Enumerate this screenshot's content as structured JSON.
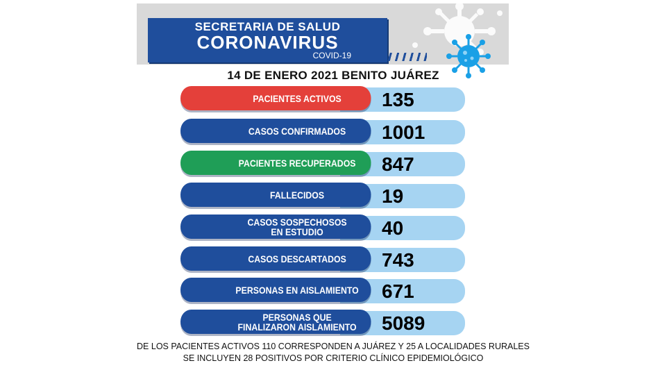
{
  "header": {
    "title_line1": "SECRETARIA DE SALUD",
    "title_line2": "CORONAVIRUS",
    "title_line3": "COVID-19",
    "date_location": "14 DE ENERO 2021 BENITO JUÁREZ"
  },
  "colors": {
    "red": "#e4403a",
    "blue": "#1f4e9c",
    "green": "#1f9e57",
    "light_blue": "#a6d4f2"
  },
  "stats": [
    {
      "label": "PACIENTES ACTIVOS",
      "value": "135",
      "color": "red"
    },
    {
      "label": "CASOS CONFIRMADOS",
      "value": "1001",
      "color": "blue"
    },
    {
      "label": "PACIENTES RECUPERADOS",
      "value": "847",
      "color": "green"
    },
    {
      "label": "FALLECIDOS",
      "value": "19",
      "color": "blue"
    },
    {
      "label_line1": "CASOS SOSPECHOSOS",
      "label_line2": "EN ESTUDIO",
      "value": "40",
      "color": "blue"
    },
    {
      "label": "CASOS DESCARTADOS",
      "value": "743",
      "color": "blue"
    },
    {
      "label": "PERSONAS EN AISLAMIENTO",
      "value": "671",
      "color": "blue"
    },
    {
      "label_line1": "PERSONAS QUE",
      "label_line2": "FINALIZARON AISLAMIENTO",
      "value": "5089",
      "color": "blue"
    }
  ],
  "footer": {
    "line1": "DE LOS PACIENTES ACTIVOS 110 CORRESPONDEN A JUÁREZ Y 25 A LOCALIDADES RURALES",
    "line2": "SE INCLUYEN 28 POSITIVOS  POR  CRITERIO CLÍNICO EPIDEMIOLÓGICO"
  },
  "icons": [
    "virus-icon-grey",
    "virus-icon-blue"
  ]
}
